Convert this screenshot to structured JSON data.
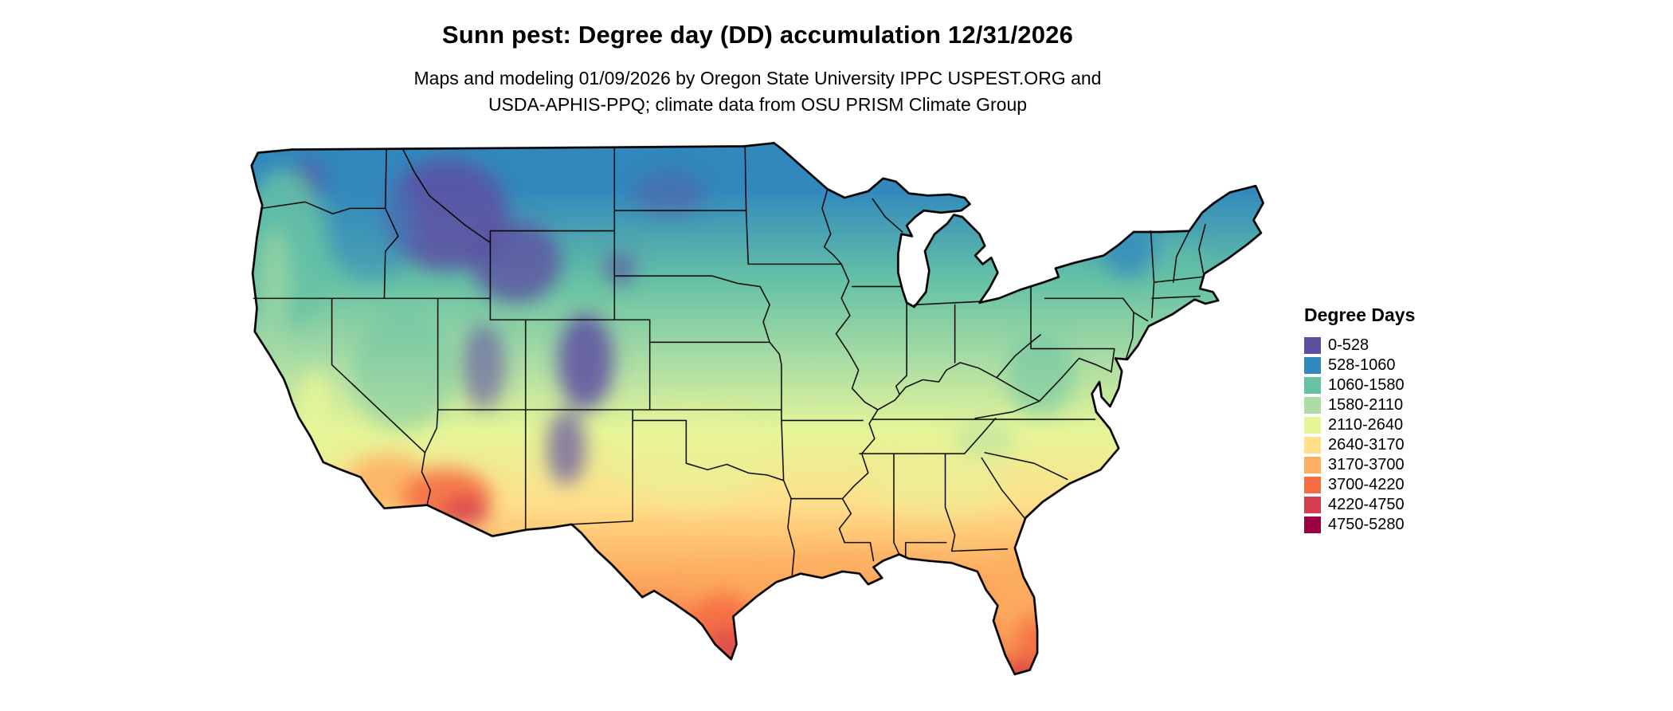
{
  "header": {
    "title": "Sunn pest: Degree day (DD) accumulation 12/31/2026",
    "subtitle_line1": "Maps and modeling 01/09/2026 by Oregon State University IPPC USPEST.ORG and",
    "subtitle_line2": "USDA-APHIS-PPQ; climate data from OSU PRISM Climate Group"
  },
  "map": {
    "region": "Continental United States",
    "kind": "degree-day accumulation choropleth raster with state borders"
  },
  "legend": {
    "title": "Degree Days",
    "entries": [
      {
        "label": "0-528",
        "color": "#5e4fa2"
      },
      {
        "label": "528-1060",
        "color": "#3288bd"
      },
      {
        "label": "1060-1580",
        "color": "#66c2a5"
      },
      {
        "label": "1580-2110",
        "color": "#abdda4"
      },
      {
        "label": "2110-2640",
        "color": "#e6f598"
      },
      {
        "label": "2640-3170",
        "color": "#fee08b"
      },
      {
        "label": "3170-3700",
        "color": "#fdae61"
      },
      {
        "label": "3700-4220",
        "color": "#f46d43"
      },
      {
        "label": "4220-4750",
        "color": "#d53e4f"
      },
      {
        "label": "4750-5280",
        "color": "#9e0142"
      }
    ]
  }
}
